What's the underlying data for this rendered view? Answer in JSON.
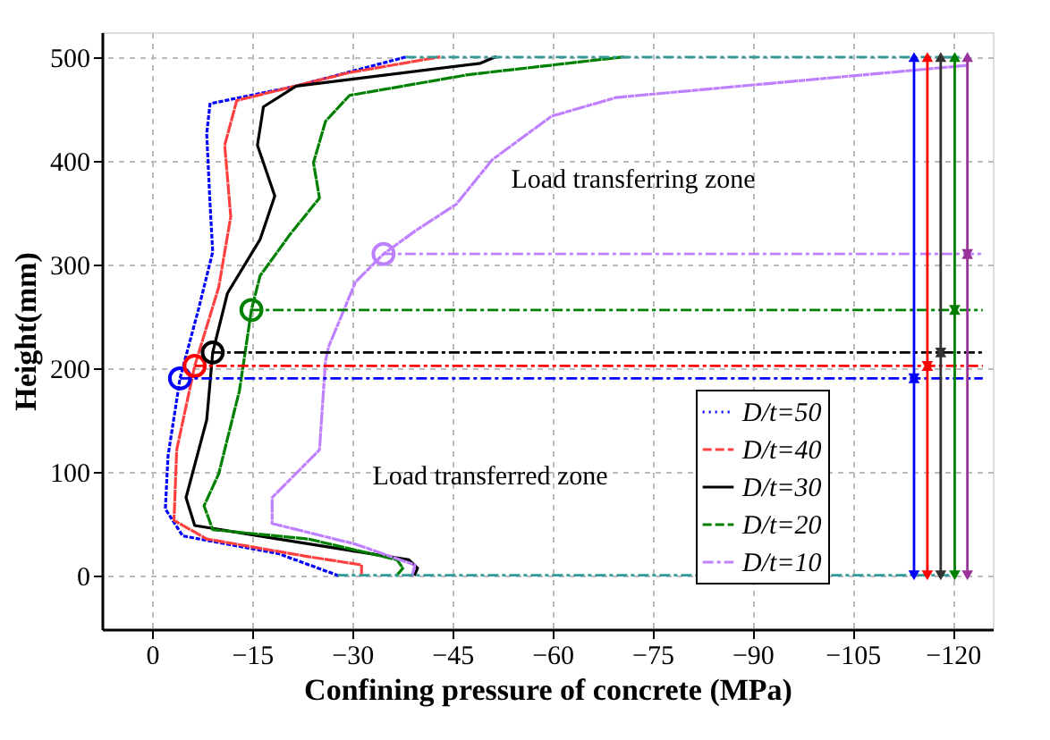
{
  "chart_data": {
    "type": "line",
    "xlabel": "Confining pressure of concrete (MPa)",
    "ylabel": "Height(mm)",
    "xlim": [
      7.5,
      -126
    ],
    "ylim": [
      -52,
      524
    ],
    "xticks": [
      0,
      -15,
      -30,
      -45,
      -60,
      -75,
      -90,
      -105,
      -120
    ],
    "yticks": [
      0,
      100,
      200,
      300,
      400,
      500
    ],
    "grid": true,
    "legend": "bottom right",
    "annotations": [
      "Load transferring zone",
      "Load transferred zone"
    ],
    "series": [
      {
        "name": "D/t=50",
        "color": "#0000ff",
        "line_style": "dotted",
        "x": [
          -27.8,
          -18.9,
          -4.6,
          -2.0,
          -2.4,
          -4.2,
          -6.9,
          -9.1,
          -8.7,
          -8.2,
          -8.7,
          -21.6,
          -38
        ],
        "values": [
          0,
          21,
          38,
          64,
          115,
          190,
          255,
          312,
          358,
          426,
          455,
          472,
          500
        ]
      },
      {
        "name": "D/t=40",
        "color": "#ff4040",
        "line_style": "dashed",
        "x": [
          -31.4,
          -31.4,
          -23.4,
          -8.2,
          -3.3,
          -3.7,
          -6.4,
          -10,
          -11.8,
          -10.9,
          -12.7,
          -29.6,
          -43
        ],
        "values": [
          0,
          10,
          18,
          35,
          53,
          121,
          202,
          278,
          346,
          415,
          458,
          485,
          500
        ]
      },
      {
        "name": "D/t=30",
        "color": "#000000",
        "line_style": "solid",
        "x": [
          -39.4,
          -39.8,
          -38.5,
          -18.9,
          -6.4,
          -5.1,
          -8.2,
          -9.1,
          -11.3,
          -16.2,
          -18.4,
          -15.8,
          -16.7,
          -21.6,
          -49.2,
          -51.4
        ],
        "values": [
          1,
          7,
          15,
          35,
          48,
          75,
          150,
          215,
          272,
          324,
          366,
          415,
          452,
          472,
          494,
          500
        ]
      },
      {
        "name": "D/t=20",
        "color": "#008000",
        "line_style": "dashed",
        "x": [
          -36.7,
          -37.6,
          -36.7,
          -23.4,
          -9.1,
          -7.8,
          -10,
          -13.1,
          -14.9,
          -16.2,
          -20.7,
          -25.1,
          -24.2,
          -26,
          -29.6,
          -47.4,
          -70.5
        ],
        "values": [
          0,
          7,
          15,
          35,
          44,
          67,
          98,
          178,
          256,
          289,
          329,
          364,
          398,
          438,
          463,
          483,
          500
        ]
      },
      {
        "name": "D/t=10",
        "color": "#bf80ff",
        "line_style": "dashdot",
        "x": [
          -39,
          -39.4,
          -30.5,
          -18,
          -18,
          -25.1,
          -26,
          -26.5,
          -30.5,
          -34.7,
          -39.4,
          -45.6,
          -51,
          -59.9,
          -69.6,
          -122.2
        ],
        "values": [
          0,
          10,
          30,
          50,
          75,
          121,
          207,
          221,
          283,
          310,
          332,
          358,
          401,
          443,
          461,
          492
        ]
      },
      {
        "type": "scatter",
        "marker": "circle",
        "x": [
          -4.2,
          -6.4,
          -9.1,
          -14.9,
          -34.7
        ],
        "values": [
          190,
          202,
          215,
          256,
          310
        ],
        "colors": [
          "#0000ff",
          "#ff0000",
          "#000000",
          "#008000",
          "#bf80ff"
        ]
      },
      {
        "color": "#339999",
        "line_style": "dashdot",
        "x": [
          -27.8,
          -121
        ],
        "values": [
          0,
          0
        ]
      },
      {
        "color": "#339999",
        "line_style": "dashdot",
        "x": [
          -38,
          -121
        ],
        "values": [
          500,
          500
        ]
      },
      {
        "color": "#0000ff",
        "line_style": "dashdot",
        "x": [
          -4.2,
          -124.5
        ],
        "values": [
          190,
          190
        ]
      },
      {
        "color": "#ff0000",
        "line_style": "dashdot",
        "x": [
          -6.4,
          -124.5
        ],
        "values": [
          202,
          202
        ]
      },
      {
        "color": "#000000",
        "line_style": "dashdot",
        "x": [
          -9.1,
          -124.5
        ],
        "values": [
          215,
          215
        ]
      },
      {
        "color": "#008000",
        "line_style": "dashdot",
        "x": [
          -14.9,
          -124.5
        ],
        "values": [
          256,
          256
        ]
      },
      {
        "color": "#bf80ff",
        "line_style": "dashdot",
        "x": [
          -34.7,
          -124.5
        ],
        "values": [
          310,
          310
        ]
      },
      {
        "color": "#0000ff",
        "line_style": "solid",
        "marker": "triangle",
        "x": [
          -114.2,
          -114.2,
          -114.2
        ],
        "values": [
          0,
          190,
          500
        ]
      },
      {
        "color": "#ff0000",
        "line_style": "solid",
        "marker": "triangle",
        "x": [
          -116.2,
          -116.2,
          -116.2
        ],
        "values": [
          0,
          202,
          500
        ]
      },
      {
        "color": "#333333",
        "line_style": "solid",
        "marker": "triangle",
        "x": [
          -118.2,
          -118.2,
          -118.2
        ],
        "values": [
          0,
          215,
          500
        ]
      },
      {
        "color": "#008000",
        "line_style": "solid",
        "marker": "triangle",
        "x": [
          -120.3,
          -120.3,
          -120.3
        ],
        "values": [
          0,
          256,
          500
        ]
      },
      {
        "color": "#993399",
        "line_style": "solid",
        "marker": "triangle",
        "x": [
          -122.2,
          -122.2,
          -122.2
        ],
        "values": [
          0,
          310,
          500
        ]
      }
    ]
  }
}
